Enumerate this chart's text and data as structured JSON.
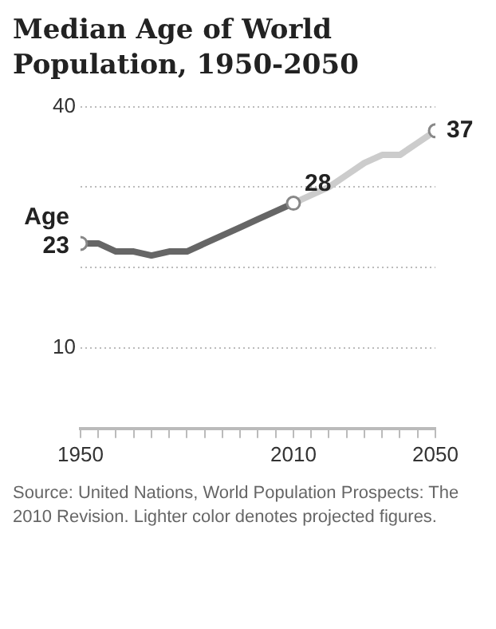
{
  "chart_data": {
    "type": "line",
    "title": "Median Age of World Population, 1950-2050",
    "ylabel": "Age",
    "series": [
      {
        "color": "#666666",
        "x": [
          1950,
          1955,
          1960,
          1965,
          1970,
          1975,
          1980,
          1985,
          1990,
          1995,
          2000,
          2005,
          2010
        ],
        "values": [
          23,
          23,
          22,
          22,
          21.5,
          22,
          22,
          23,
          24,
          25,
          26,
          27,
          28
        ],
        "value_labels": [
          "23",
          null,
          null,
          null,
          null,
          null,
          null,
          null,
          null,
          null,
          null,
          null,
          "28"
        ]
      },
      {
        "color": "#cccccc",
        "x": [
          2010,
          2015,
          2020,
          2025,
          2030,
          2035,
          2040,
          2045,
          2050
        ],
        "values": [
          28,
          29,
          30,
          31.5,
          33,
          34,
          34,
          35.5,
          37
        ],
        "value_labels": [
          null,
          null,
          null,
          null,
          null,
          null,
          null,
          null,
          "37"
        ]
      }
    ],
    "xlim": [
      1950,
      2050
    ],
    "xticks": [
      1950,
      {
        "value": 1955,
        "label": null
      },
      {
        "value": 1960,
        "label": null
      },
      {
        "value": 1965,
        "label": null
      },
      {
        "value": 1970,
        "label": null
      },
      {
        "value": 1975,
        "label": null
      },
      {
        "value": 1980,
        "label": null
      },
      {
        "value": 1985,
        "label": null
      },
      {
        "value": 1990,
        "label": null
      },
      {
        "value": 1995,
        "label": null
      },
      {
        "value": 2000,
        "label": null
      },
      {
        "value": 2005,
        "label": null
      },
      2010,
      {
        "value": 2015,
        "label": null
      },
      {
        "value": 2020,
        "label": null
      },
      {
        "value": 2025,
        "label": null
      },
      {
        "value": 2030,
        "label": null
      },
      {
        "value": 2035,
        "label": null
      },
      {
        "value": 2040,
        "label": null
      },
      {
        "value": 2045,
        "label": null
      },
      2050
    ],
    "ylim": [
      0,
      40
    ],
    "yticks": [
      10,
      {
        "value": 20,
        "label": null
      },
      {
        "value": 30,
        "label": null
      },
      40
    ],
    "grid": "y",
    "legend": false,
    "annotations": [
      "Source: United Nations, World Population Prospects: The 2010 Revision. Lighter color denotes projected figures."
    ]
  }
}
